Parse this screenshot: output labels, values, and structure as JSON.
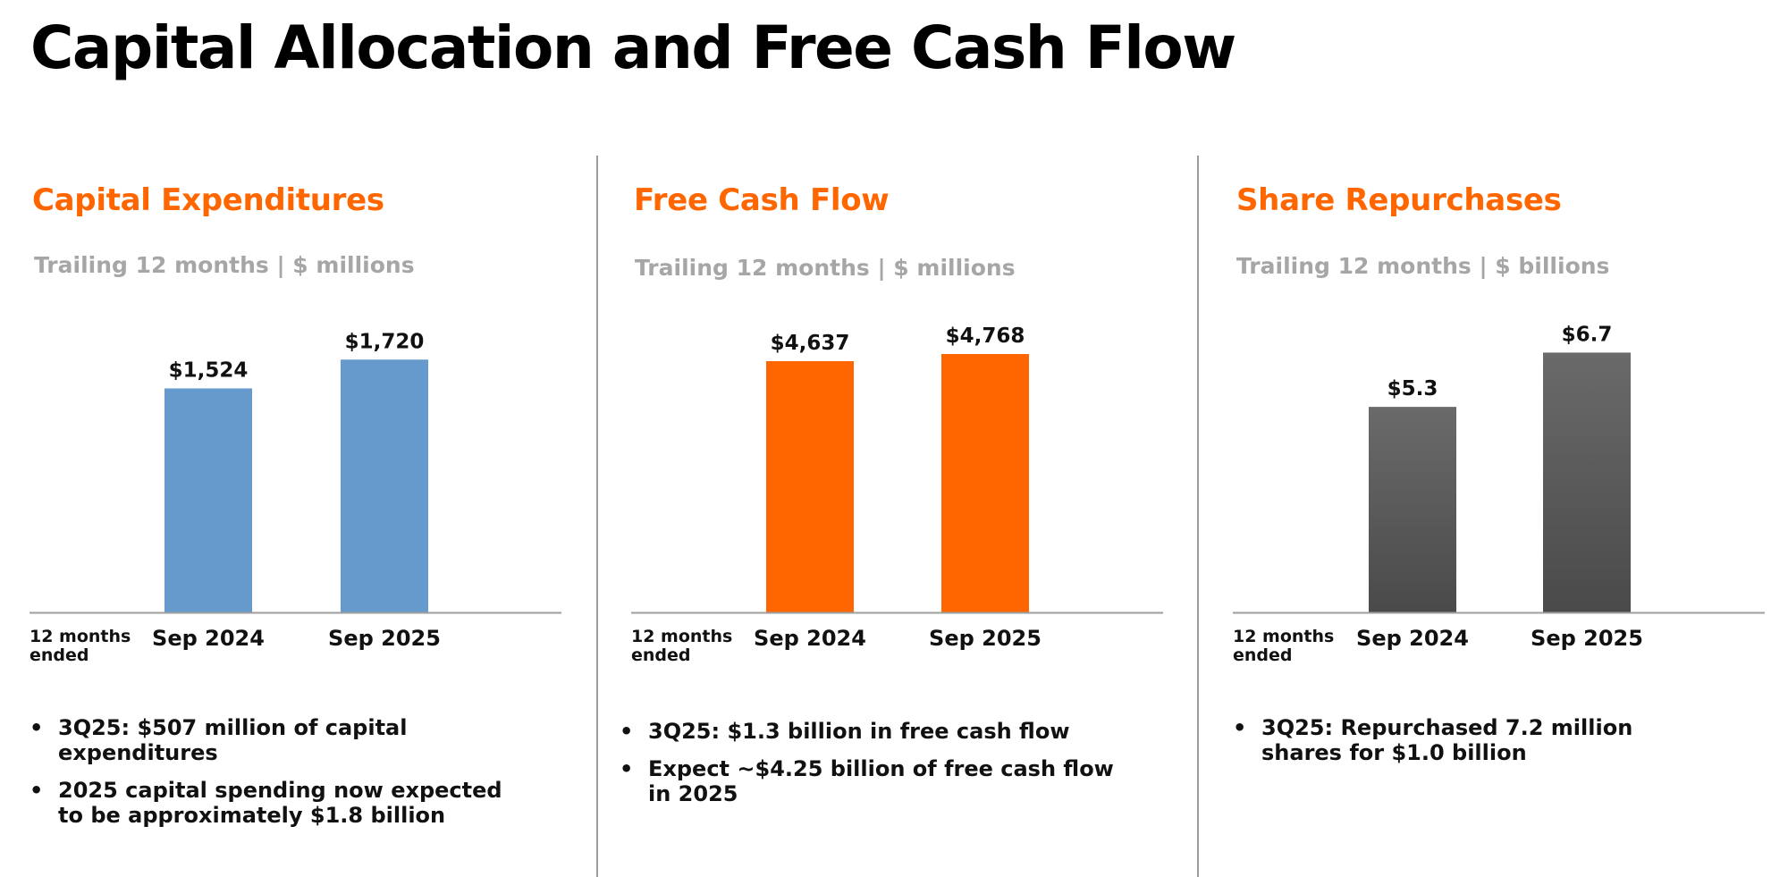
{
  "page": {
    "title": "Capital Allocation and Free Cash Flow"
  },
  "period_label": "12 months\nended",
  "panels": [
    {
      "title": "Capital Expenditures",
      "subtitle": "Trailing 12 months | $ millions",
      "bullets": [
        "3Q25: $507 million of capital expenditures",
        "2025 capital spending now expected to be approximately $1.8 billion"
      ]
    },
    {
      "title": "Free Cash Flow",
      "subtitle": "Trailing 12 months | $ millions",
      "bullets": [
        "3Q25: $1.3 billion in free cash flow",
        "Expect ~$4.25 billion of free cash flow in 2025"
      ]
    },
    {
      "title": "Share Repurchases",
      "subtitle": "Trailing 12 months | $ billions",
      "bullets": [
        "3Q25: Repurchased 7.2 million shares for $1.0 billion"
      ]
    }
  ],
  "chart_data": [
    {
      "type": "bar",
      "title": "Capital Expenditures",
      "categories": [
        "Sep 2024",
        "Sep 2025"
      ],
      "values": [
        1524,
        1720
      ],
      "data_labels": [
        "$1,524",
        "$1,720"
      ],
      "unit": "$ millions",
      "ylim": [
        0,
        2190
      ],
      "color": "#6699cc",
      "grid": false
    },
    {
      "type": "bar",
      "title": "Free Cash Flow",
      "categories": [
        "Sep 2024",
        "Sep 2025"
      ],
      "values": [
        4637,
        4768
      ],
      "data_labels": [
        "$4,637",
        "$4,768"
      ],
      "unit": "$ millions",
      "ylim": [
        0,
        5940
      ],
      "color": "#ff6600",
      "grid": false
    },
    {
      "type": "bar",
      "title": "Share Repurchases",
      "categories": [
        "Sep 2024",
        "Sep 2025"
      ],
      "values": [
        5.3,
        6.7
      ],
      "data_labels": [
        "$5.3",
        "$6.7"
      ],
      "unit": "$ billions",
      "ylim": [
        0,
        8.3
      ],
      "color": "#595959",
      "grid": false
    }
  ]
}
